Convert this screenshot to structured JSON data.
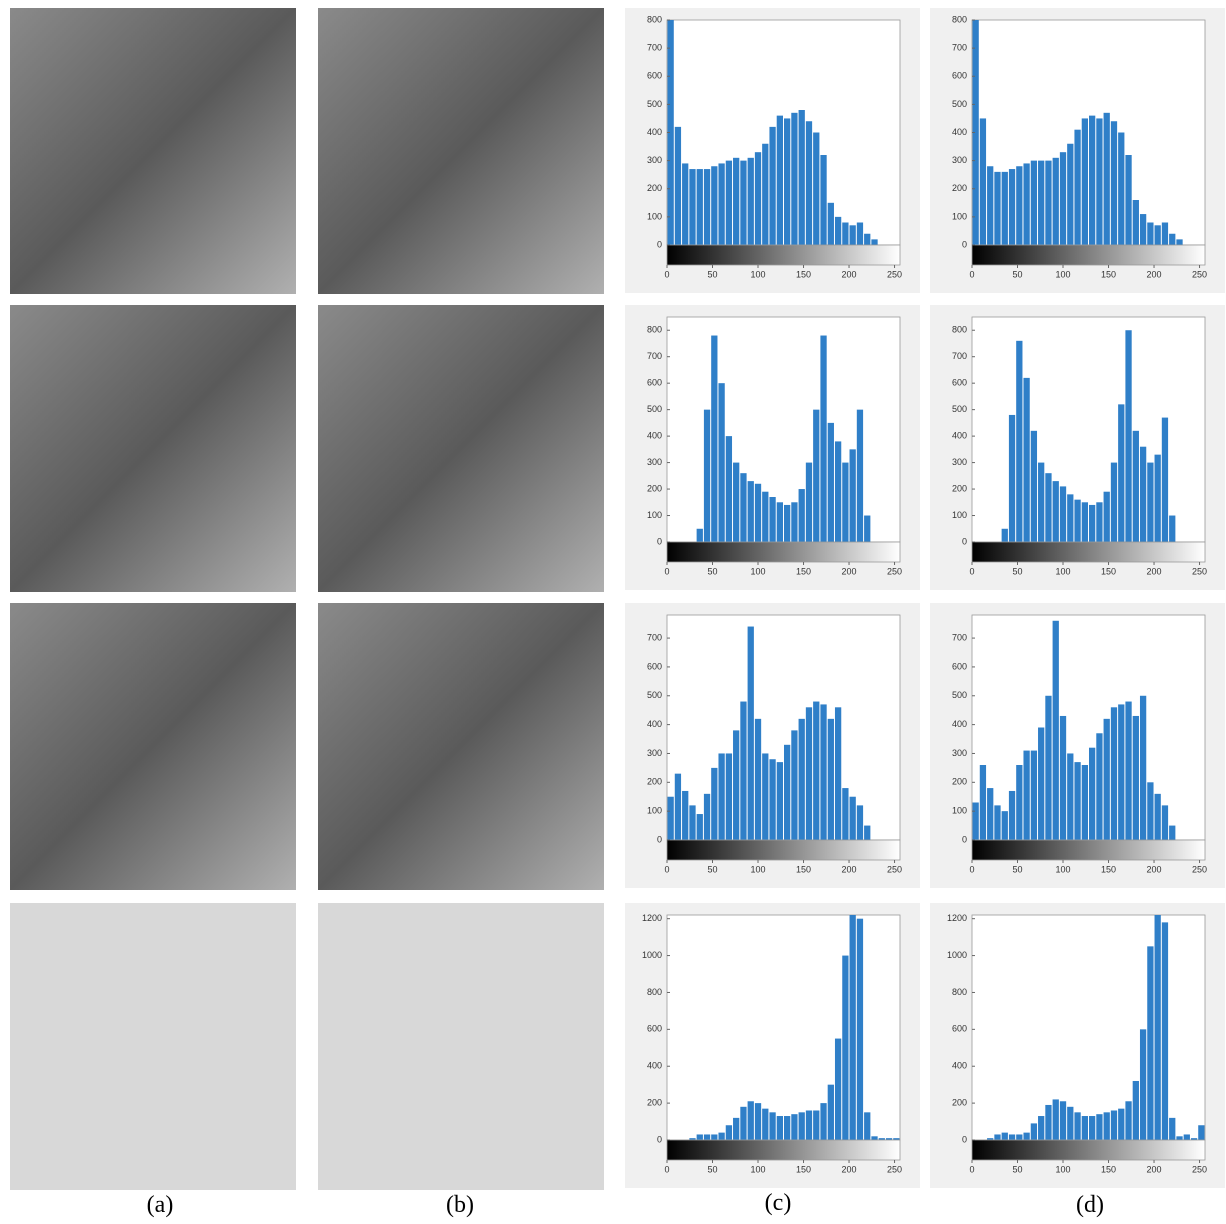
{
  "labels": [
    "(a)",
    "(b)",
    "(c)",
    "(d)"
  ],
  "chart_data": [
    {
      "type": "histogram",
      "color": "#2f7fc8",
      "xlim": [
        0,
        256
      ],
      "xticks": [
        0,
        50,
        100,
        150,
        200,
        250
      ],
      "ylim": [
        0,
        800
      ],
      "yticks": [
        0,
        100,
        200,
        300,
        400,
        500,
        600,
        700,
        800
      ],
      "bins": [
        0,
        8,
        16,
        24,
        32,
        40,
        48,
        56,
        64,
        72,
        80,
        88,
        96,
        104,
        112,
        120,
        128,
        136,
        144,
        152,
        160,
        168,
        176,
        184,
        192,
        200,
        208,
        216,
        224,
        232,
        240,
        248,
        256
      ],
      "counts": [
        800,
        420,
        290,
        270,
        270,
        270,
        280,
        290,
        300,
        310,
        300,
        310,
        330,
        360,
        420,
        460,
        450,
        470,
        480,
        440,
        400,
        320,
        150,
        100,
        80,
        70,
        80,
        40,
        20,
        0,
        0,
        0
      ]
    },
    {
      "type": "histogram",
      "color": "#2f7fc8",
      "xlim": [
        0,
        256
      ],
      "xticks": [
        0,
        50,
        100,
        150,
        200,
        250
      ],
      "ylim": [
        0,
        800
      ],
      "yticks": [
        0,
        100,
        200,
        300,
        400,
        500,
        600,
        700,
        800
      ],
      "bins": [
        0,
        8,
        16,
        24,
        32,
        40,
        48,
        56,
        64,
        72,
        80,
        88,
        96,
        104,
        112,
        120,
        128,
        136,
        144,
        152,
        160,
        168,
        176,
        184,
        192,
        200,
        208,
        216,
        224,
        232,
        240,
        248,
        256
      ],
      "counts": [
        800,
        450,
        280,
        260,
        260,
        270,
        280,
        290,
        300,
        300,
        300,
        310,
        330,
        360,
        410,
        450,
        460,
        450,
        470,
        440,
        400,
        320,
        160,
        110,
        80,
        70,
        80,
        40,
        20,
        0,
        0,
        0
      ]
    },
    {
      "type": "histogram",
      "color": "#2f7fc8",
      "xlim": [
        0,
        256
      ],
      "xticks": [
        0,
        50,
        100,
        150,
        200,
        250
      ],
      "ylim": [
        0,
        850
      ],
      "yticks": [
        0,
        100,
        200,
        300,
        400,
        500,
        600,
        700,
        800
      ],
      "bins": [
        0,
        8,
        16,
        24,
        32,
        40,
        48,
        56,
        64,
        72,
        80,
        88,
        96,
        104,
        112,
        120,
        128,
        136,
        144,
        152,
        160,
        168,
        176,
        184,
        192,
        200,
        208,
        216,
        224,
        232,
        240,
        248,
        256
      ],
      "counts": [
        0,
        0,
        0,
        0,
        50,
        500,
        780,
        600,
        400,
        300,
        260,
        230,
        220,
        190,
        170,
        150,
        140,
        150,
        200,
        300,
        500,
        780,
        450,
        380,
        300,
        350,
        500,
        100,
        0,
        0,
        0,
        0
      ]
    },
    {
      "type": "histogram",
      "color": "#2f7fc8",
      "xlim": [
        0,
        256
      ],
      "xticks": [
        0,
        50,
        100,
        150,
        200,
        250
      ],
      "ylim": [
        0,
        850
      ],
      "yticks": [
        0,
        100,
        200,
        300,
        400,
        500,
        600,
        700,
        800
      ],
      "bins": [
        0,
        8,
        16,
        24,
        32,
        40,
        48,
        56,
        64,
        72,
        80,
        88,
        96,
        104,
        112,
        120,
        128,
        136,
        144,
        152,
        160,
        168,
        176,
        184,
        192,
        200,
        208,
        216,
        224,
        232,
        240,
        248,
        256
      ],
      "counts": [
        0,
        0,
        0,
        0,
        50,
        480,
        760,
        620,
        420,
        300,
        260,
        230,
        210,
        180,
        160,
        150,
        140,
        150,
        190,
        300,
        520,
        800,
        420,
        360,
        300,
        330,
        470,
        100,
        0,
        0,
        0,
        0
      ]
    },
    {
      "type": "histogram",
      "color": "#2f7fc8",
      "xlim": [
        0,
        256
      ],
      "xticks": [
        0,
        50,
        100,
        150,
        200,
        250
      ],
      "ylim": [
        0,
        780
      ],
      "yticks": [
        0,
        100,
        200,
        300,
        400,
        500,
        600,
        700
      ],
      "bins": [
        0,
        8,
        16,
        24,
        32,
        40,
        48,
        56,
        64,
        72,
        80,
        88,
        96,
        104,
        112,
        120,
        128,
        136,
        144,
        152,
        160,
        168,
        176,
        184,
        192,
        200,
        208,
        216,
        224,
        232,
        240,
        248,
        256
      ],
      "counts": [
        150,
        230,
        170,
        120,
        90,
        160,
        250,
        300,
        300,
        380,
        480,
        740,
        420,
        300,
        280,
        270,
        330,
        380,
        420,
        460,
        480,
        470,
        420,
        460,
        180,
        150,
        120,
        50,
        0,
        0,
        0,
        0
      ]
    },
    {
      "type": "histogram",
      "color": "#2f7fc8",
      "xlim": [
        0,
        256
      ],
      "xticks": [
        0,
        50,
        100,
        150,
        200,
        250
      ],
      "ylim": [
        0,
        780
      ],
      "yticks": [
        0,
        100,
        200,
        300,
        400,
        500,
        600,
        700
      ],
      "bins": [
        0,
        8,
        16,
        24,
        32,
        40,
        48,
        56,
        64,
        72,
        80,
        88,
        96,
        104,
        112,
        120,
        128,
        136,
        144,
        152,
        160,
        168,
        176,
        184,
        192,
        200,
        208,
        216,
        224,
        232,
        240,
        248,
        256
      ],
      "counts": [
        130,
        260,
        180,
        120,
        100,
        170,
        260,
        310,
        310,
        390,
        500,
        760,
        430,
        300,
        270,
        260,
        320,
        370,
        420,
        460,
        470,
        480,
        430,
        500,
        200,
        160,
        120,
        50,
        0,
        0,
        0,
        0
      ]
    },
    {
      "type": "histogram",
      "color": "#2f7fc8",
      "xlim": [
        0,
        256
      ],
      "xticks": [
        0,
        50,
        100,
        150,
        200,
        250
      ],
      "ylim": [
        0,
        1220
      ],
      "yticks": [
        0,
        200,
        400,
        600,
        800,
        1000,
        1200
      ],
      "bins": [
        0,
        8,
        16,
        24,
        32,
        40,
        48,
        56,
        64,
        72,
        80,
        88,
        96,
        104,
        112,
        120,
        128,
        136,
        144,
        152,
        160,
        168,
        176,
        184,
        192,
        200,
        208,
        216,
        224,
        232,
        240,
        248,
        256
      ],
      "counts": [
        0,
        0,
        0,
        10,
        30,
        30,
        30,
        40,
        80,
        120,
        180,
        210,
        200,
        170,
        150,
        130,
        130,
        140,
        150,
        160,
        160,
        200,
        300,
        550,
        1000,
        1220,
        1200,
        150,
        20,
        10,
        10,
        10
      ]
    },
    {
      "type": "histogram",
      "color": "#2f7fc8",
      "xlim": [
        0,
        256
      ],
      "xticks": [
        0,
        50,
        100,
        150,
        200,
        250
      ],
      "ylim": [
        0,
        1220
      ],
      "yticks": [
        0,
        200,
        400,
        600,
        800,
        1000,
        1200
      ],
      "bins": [
        0,
        8,
        16,
        24,
        32,
        40,
        48,
        56,
        64,
        72,
        80,
        88,
        96,
        104,
        112,
        120,
        128,
        136,
        144,
        152,
        160,
        168,
        176,
        184,
        192,
        200,
        208,
        216,
        224,
        232,
        240,
        248,
        256
      ],
      "counts": [
        0,
        0,
        10,
        30,
        40,
        30,
        30,
        40,
        90,
        130,
        190,
        220,
        210,
        180,
        150,
        130,
        130,
        140,
        150,
        160,
        170,
        210,
        320,
        600,
        1050,
        1220,
        1180,
        120,
        20,
        30,
        10,
        80
      ]
    }
  ]
}
